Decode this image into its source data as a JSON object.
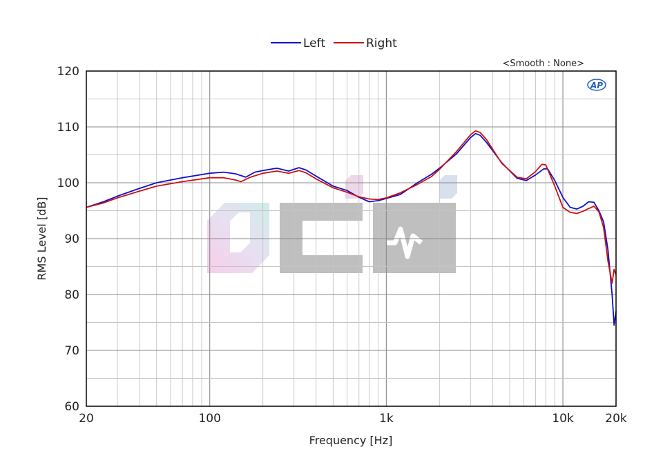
{
  "chart_data": {
    "type": "line",
    "xlabel": "Frequency [Hz]",
    "ylabel": "RMS Level [dB]",
    "x_scale": "log",
    "xlim": [
      20,
      20000
    ],
    "ylim": [
      60,
      120
    ],
    "x_ticks": [
      {
        "value": 20,
        "label": "20"
      },
      {
        "value": 100,
        "label": "100"
      },
      {
        "value": 1000,
        "label": "1k"
      },
      {
        "value": 10000,
        "label": "10k"
      },
      {
        "value": 20000,
        "label": "20k"
      }
    ],
    "y_ticks": [
      60,
      70,
      80,
      90,
      100,
      110,
      120
    ],
    "grid": true,
    "legend_position": "top-center",
    "annotation": "<Smooth : None>",
    "logo": "AP",
    "series": [
      {
        "name": "Left",
        "color": "#1010c8",
        "points": [
          [
            20,
            95.6
          ],
          [
            25,
            96.6
          ],
          [
            30,
            97.6
          ],
          [
            40,
            99.0
          ],
          [
            50,
            100.0
          ],
          [
            70,
            100.9
          ],
          [
            100,
            101.7
          ],
          [
            120,
            101.9
          ],
          [
            140,
            101.6
          ],
          [
            160,
            101.0
          ],
          [
            180,
            101.9
          ],
          [
            200,
            102.2
          ],
          [
            240,
            102.6
          ],
          [
            280,
            102.1
          ],
          [
            320,
            102.7
          ],
          [
            350,
            102.3
          ],
          [
            400,
            101.2
          ],
          [
            500,
            99.4
          ],
          [
            600,
            98.6
          ],
          [
            700,
            97.4
          ],
          [
            800,
            96.6
          ],
          [
            900,
            96.8
          ],
          [
            1000,
            97.2
          ],
          [
            1200,
            97.9
          ],
          [
            1500,
            100.0
          ],
          [
            1800,
            101.5
          ],
          [
            2000,
            102.6
          ],
          [
            2500,
            105.2
          ],
          [
            3000,
            108.1
          ],
          [
            3200,
            108.8
          ],
          [
            3400,
            108.5
          ],
          [
            3700,
            107.2
          ],
          [
            4500,
            103.6
          ],
          [
            5500,
            100.8
          ],
          [
            6200,
            100.4
          ],
          [
            7000,
            101.4
          ],
          [
            7800,
            102.5
          ],
          [
            8200,
            102.5
          ],
          [
            9000,
            100.4
          ],
          [
            10000,
            97.4
          ],
          [
            11000,
            95.6
          ],
          [
            12000,
            95.3
          ],
          [
            13000,
            95.8
          ],
          [
            14000,
            96.6
          ],
          [
            15000,
            96.5
          ],
          [
            16000,
            95.0
          ],
          [
            17000,
            93.0
          ],
          [
            18000,
            88.0
          ],
          [
            19000,
            80.0
          ],
          [
            19500,
            74.5
          ],
          [
            20000,
            77.0
          ]
        ]
      },
      {
        "name": "Right",
        "color": "#cc1010",
        "points": [
          [
            20,
            95.6
          ],
          [
            25,
            96.4
          ],
          [
            30,
            97.3
          ],
          [
            40,
            98.5
          ],
          [
            50,
            99.4
          ],
          [
            70,
            100.2
          ],
          [
            100,
            100.9
          ],
          [
            120,
            100.9
          ],
          [
            140,
            100.5
          ],
          [
            150,
            100.2
          ],
          [
            170,
            101.0
          ],
          [
            200,
            101.7
          ],
          [
            240,
            102.1
          ],
          [
            280,
            101.7
          ],
          [
            320,
            102.2
          ],
          [
            350,
            101.8
          ],
          [
            400,
            100.7
          ],
          [
            500,
            99.1
          ],
          [
            600,
            98.3
          ],
          [
            700,
            97.5
          ],
          [
            800,
            97.1
          ],
          [
            900,
            97.0
          ],
          [
            1000,
            97.3
          ],
          [
            1200,
            98.2
          ],
          [
            1500,
            99.7
          ],
          [
            1800,
            101.1
          ],
          [
            2000,
            102.4
          ],
          [
            2500,
            105.6
          ],
          [
            3000,
            108.6
          ],
          [
            3200,
            109.3
          ],
          [
            3400,
            109.0
          ],
          [
            3700,
            107.7
          ],
          [
            4500,
            103.5
          ],
          [
            5500,
            101.0
          ],
          [
            6200,
            100.7
          ],
          [
            7000,
            102.0
          ],
          [
            7600,
            103.3
          ],
          [
            8000,
            103.2
          ],
          [
            9000,
            99.4
          ],
          [
            10000,
            95.6
          ],
          [
            11000,
            94.7
          ],
          [
            12000,
            94.5
          ],
          [
            13000,
            94.9
          ],
          [
            14000,
            95.4
          ],
          [
            15000,
            95.8
          ],
          [
            16000,
            94.8
          ],
          [
            17000,
            92.0
          ],
          [
            18000,
            86.0
          ],
          [
            19000,
            82.0
          ],
          [
            19500,
            84.5
          ],
          [
            20000,
            83.5
          ]
        ]
      }
    ]
  }
}
